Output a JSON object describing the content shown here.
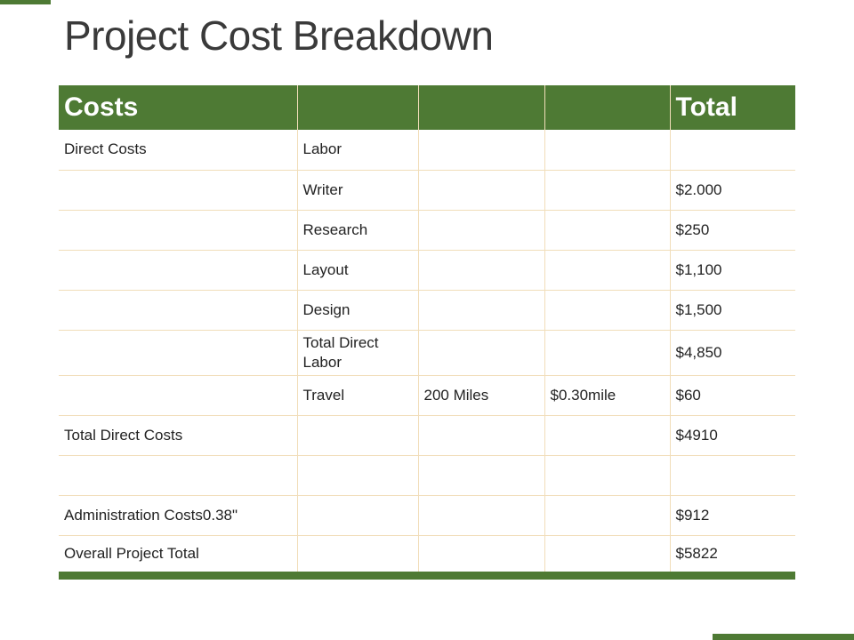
{
  "title": "Project Cost Breakdown",
  "table": {
    "headers": [
      "Costs",
      "",
      "",
      "",
      "Total"
    ],
    "rows": [
      [
        "Direct Costs",
        "Labor",
        "",
        "",
        ""
      ],
      [
        "",
        "Writer",
        "",
        "",
        "$2.000"
      ],
      [
        "",
        "Research",
        "",
        "",
        "$250"
      ],
      [
        "",
        "Layout",
        "",
        "",
        "$1,100"
      ],
      [
        "",
        "Design",
        "",
        "",
        "$1,500"
      ],
      [
        "",
        "Total Direct Labor",
        "",
        "",
        "$4,850"
      ],
      [
        "",
        "Travel",
        "200 Miles",
        "$0.30mile",
        "$60"
      ],
      [
        "Total Direct Costs",
        "",
        "",
        "",
        "$4910"
      ],
      [
        "",
        "",
        "",
        "",
        ""
      ],
      [
        "Administration Costs0.38\"",
        "",
        "",
        "",
        "$912"
      ],
      [
        "Overall Project Total",
        "",
        "",
        "",
        "$5822"
      ]
    ]
  },
  "colors": {
    "header_bg": "#4e7a34",
    "grid_line": "#f1ddb9"
  }
}
